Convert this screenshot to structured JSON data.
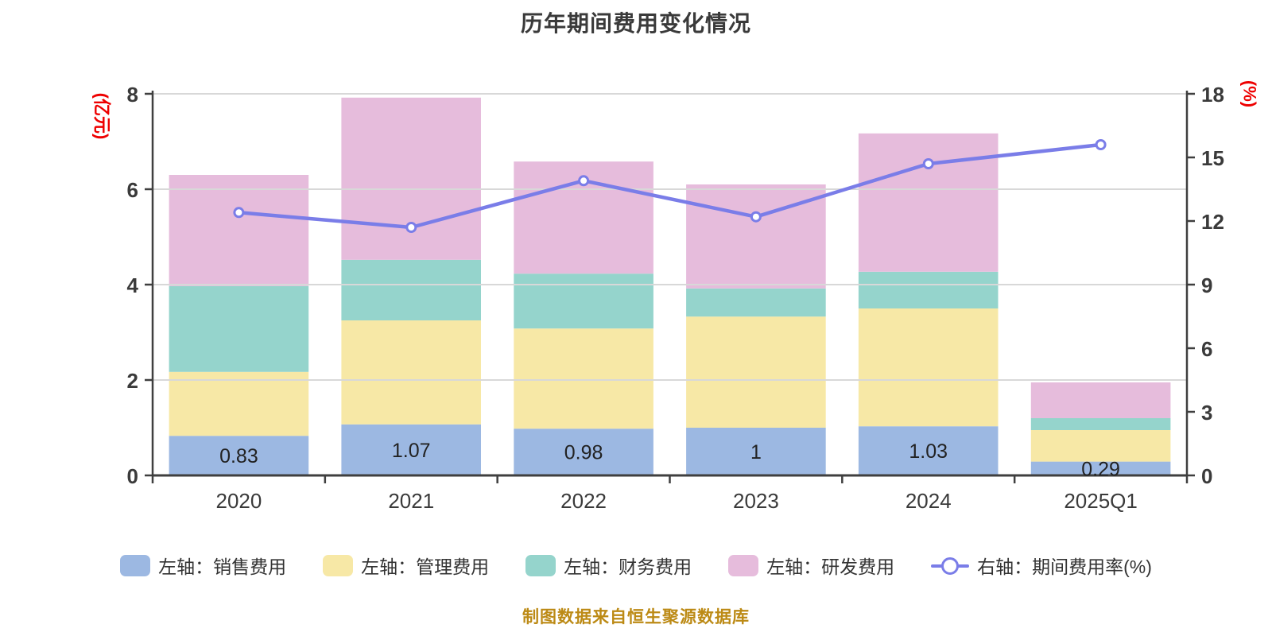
{
  "title": "历年期间费用变化情况",
  "caption": "制图数据来自恒生聚源数据库",
  "colors": {
    "sales": "#9cb8e2",
    "admin": "#f7e8a6",
    "finance": "#95d4cc",
    "rnd": "#e6bcdc",
    "rate_line": "#7a7de8",
    "axis": "#3f3f3f",
    "grid": "#d8d8d8",
    "tick_text": "#3a3a3a",
    "bar_label": "#222222",
    "unit_text": "#ee0000",
    "caption_text": "#bc8a15"
  },
  "left_axis": {
    "unit": "(亿元)",
    "ticks": [
      0,
      2,
      4,
      6,
      8
    ]
  },
  "right_axis": {
    "unit": "(%)",
    "ticks": [
      0,
      3,
      6,
      9,
      12,
      15,
      18
    ]
  },
  "legend": [
    {
      "label": "左轴：销售费用",
      "marker": "swatch",
      "color": "#9cb8e2"
    },
    {
      "label": "左轴：管理费用",
      "marker": "swatch",
      "color": "#f7e8a6"
    },
    {
      "label": "左轴：财务费用",
      "marker": "swatch",
      "color": "#95d4cc"
    },
    {
      "label": "左轴：研发费用",
      "marker": "swatch",
      "color": "#e6bcdc"
    },
    {
      "label": "右轴：期间费用率(%)",
      "marker": "line",
      "color": "#7a7de8"
    }
  ],
  "chart_data": {
    "type": "bar",
    "subtype": "stacked-bar-with-line",
    "title": "历年期间费用变化情况",
    "categories": [
      "2020",
      "2021",
      "2022",
      "2023",
      "2024",
      "2025Q1"
    ],
    "series": [
      {
        "name": "左轴：销售费用",
        "type": "bar",
        "stack": true,
        "axis": "left",
        "color": "#9cb8e2",
        "values": [
          0.83,
          1.07,
          0.98,
          1.0,
          1.03,
          0.29
        ],
        "labels": [
          "0.83",
          "1.07",
          "0.98",
          "1",
          "1.03",
          "0.29"
        ]
      },
      {
        "name": "左轴：管理费用",
        "type": "bar",
        "stack": true,
        "axis": "left",
        "color": "#f7e8a6",
        "values": [
          1.34,
          2.18,
          2.1,
          2.33,
          2.47,
          0.66
        ]
      },
      {
        "name": "左轴：财务费用",
        "type": "bar",
        "stack": true,
        "axis": "left",
        "color": "#95d4cc",
        "values": [
          1.8,
          1.27,
          1.15,
          0.59,
          0.77,
          0.25
        ]
      },
      {
        "name": "左轴：研发费用",
        "type": "bar",
        "stack": true,
        "axis": "left",
        "color": "#e6bcdc",
        "values": [
          2.33,
          3.4,
          2.35,
          2.18,
          2.9,
          0.75
        ]
      },
      {
        "name": "右轴：期间费用率(%)",
        "type": "line",
        "axis": "right",
        "color": "#7a7de8",
        "values": [
          12.4,
          11.7,
          13.9,
          12.2,
          14.7,
          15.6
        ]
      }
    ],
    "stack_totals": [
      6.3,
      7.92,
      6.58,
      6.1,
      7.17,
      1.95
    ],
    "left_ylim": [
      0,
      8
    ],
    "right_ylim": [
      0,
      18
    ],
    "left_axis_label": "(亿元)",
    "right_axis_label": "(%)",
    "grid": true,
    "gridline_ticks_left": [
      2,
      4,
      6,
      8
    ],
    "legend_position": "bottom"
  }
}
